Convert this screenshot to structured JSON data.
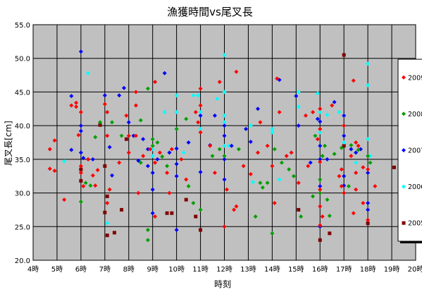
{
  "chart_data": {
    "type": "scatter",
    "title": "漁獲時間vs尾叉長",
    "xlabel": "時刻",
    "ylabel": "尾叉長[cm]",
    "xlim": [
      4,
      20
    ],
    "ylim": [
      20,
      55
    ],
    "x_ticks": [
      "4時",
      "5時",
      "6時",
      "7時",
      "8時",
      "9時",
      "10時",
      "11時",
      "12時",
      "13時",
      "14時",
      "15時",
      "16時",
      "17時",
      "18時",
      "19時",
      "20時"
    ],
    "y_ticks": [
      "20.0",
      "25.0",
      "30.0",
      "35.0",
      "40.0",
      "45.0",
      "50.0",
      "55.0"
    ],
    "grid": true,
    "legend_position": "right",
    "plot_background": "#c0c0c0",
    "series": [
      {
        "name": "2009",
        "color": "#ff0000",
        "marker": "diamond",
        "points": [
          [
            4.7,
            36.5
          ],
          [
            4.9,
            37.8
          ],
          [
            4.9,
            33.3
          ],
          [
            4.7,
            33.6
          ],
          [
            5.3,
            29.0
          ],
          [
            5.6,
            43.0
          ],
          [
            5.8,
            43.4
          ],
          [
            5.8,
            42.8
          ],
          [
            6.0,
            42.0
          ],
          [
            5.9,
            38.6
          ],
          [
            6.0,
            34.0
          ],
          [
            6.0,
            33.0
          ],
          [
            6.3,
            35.0
          ],
          [
            6.1,
            31.0
          ],
          [
            6.5,
            32.6
          ],
          [
            6.6,
            31.1
          ],
          [
            6.7,
            33.4
          ],
          [
            7.0,
            43.2
          ],
          [
            7.1,
            42.0
          ],
          [
            7.1,
            38.5
          ],
          [
            7.2,
            30.5
          ],
          [
            7.1,
            28.5
          ],
          [
            7.6,
            34.5
          ],
          [
            7.9,
            41.5
          ],
          [
            8.0,
            38.5
          ],
          [
            8.0,
            36.0
          ],
          [
            8.3,
            45.0
          ],
          [
            8.3,
            43.0
          ],
          [
            8.4,
            30.0
          ],
          [
            8.3,
            38.5
          ],
          [
            8.6,
            35.5
          ],
          [
            8.9,
            36.5
          ],
          [
            9.1,
            46.5
          ],
          [
            9.1,
            34.5
          ],
          [
            9.1,
            26.5
          ],
          [
            9.3,
            36.0
          ],
          [
            9.6,
            33.0
          ],
          [
            9.7,
            30.0
          ],
          [
            9.8,
            36.5
          ],
          [
            10.2,
            35.0
          ],
          [
            10.4,
            32.0
          ],
          [
            10.8,
            42.0
          ],
          [
            10.9,
            40.5
          ],
          [
            11.0,
            45.5
          ],
          [
            11.0,
            43.0
          ],
          [
            11.0,
            39.0
          ],
          [
            11.4,
            37.0
          ],
          [
            11.6,
            33.0
          ],
          [
            11.8,
            46.5
          ],
          [
            12.0,
            25.0
          ],
          [
            12.1,
            30.5
          ],
          [
            12.4,
            27.5
          ],
          [
            12.5,
            48.0
          ],
          [
            12.5,
            28.0
          ],
          [
            12.8,
            34.0
          ],
          [
            13.1,
            32.8
          ],
          [
            13.4,
            36.0
          ],
          [
            13.5,
            40.5
          ],
          [
            13.8,
            37.0
          ],
          [
            14.0,
            34.0
          ],
          [
            14.1,
            28.5
          ],
          [
            14.2,
            47.0
          ],
          [
            14.3,
            42.0
          ],
          [
            14.6,
            35.5
          ],
          [
            14.8,
            36.0
          ],
          [
            15.1,
            31.5
          ],
          [
            15.4,
            41.5
          ],
          [
            15.5,
            34.0
          ],
          [
            15.7,
            42.0
          ],
          [
            15.9,
            38.0
          ],
          [
            16.0,
            42.5
          ],
          [
            16.0,
            39.5
          ],
          [
            16.0,
            34.6
          ],
          [
            16.0,
            30.5
          ],
          [
            16.0,
            28.0
          ],
          [
            16.0,
            25.2
          ],
          [
            16.1,
            26.5
          ],
          [
            16.5,
            43.0
          ],
          [
            16.8,
            32.5
          ],
          [
            17.0,
            40.0
          ],
          [
            16.9,
            33.5
          ],
          [
            16.9,
            31.0
          ],
          [
            17.0,
            30.0
          ],
          [
            17.3,
            35.5
          ],
          [
            17.4,
            27.0
          ],
          [
            17.5,
            37.5
          ],
          [
            17.5,
            33.0
          ],
          [
            17.5,
            30.5
          ],
          [
            17.6,
            37.0
          ],
          [
            17.8,
            28.5
          ],
          [
            17.4,
            46.7
          ],
          [
            17.8,
            33.8
          ],
          [
            18.0,
            33.5
          ],
          [
            18.0,
            26.0
          ],
          [
            18.3,
            31.0
          ]
        ]
      },
      {
        "name": "2008",
        "color": "#00a000",
        "marker": "diamond",
        "points": [
          [
            6.0,
            28.7
          ],
          [
            6.2,
            31.5
          ],
          [
            6.4,
            31.1
          ],
          [
            6.6,
            38.3
          ],
          [
            6.8,
            40.5
          ],
          [
            7.3,
            40.5
          ],
          [
            7.7,
            38.5
          ],
          [
            8.5,
            40.8
          ],
          [
            8.5,
            34.5
          ],
          [
            8.8,
            45.5
          ],
          [
            8.8,
            24.5
          ],
          [
            8.8,
            23.0
          ],
          [
            9.0,
            38.0
          ],
          [
            9.0,
            37.0
          ],
          [
            9.2,
            37.5
          ],
          [
            9.4,
            35.4
          ],
          [
            9.6,
            34.0
          ],
          [
            10.0,
            39.5
          ],
          [
            10.4,
            41.0
          ],
          [
            10.5,
            31.0
          ],
          [
            10.7,
            28.5
          ],
          [
            11.0,
            27.5
          ],
          [
            11.5,
            35.5
          ],
          [
            11.8,
            36.5
          ],
          [
            12.0,
            35.5
          ],
          [
            12.6,
            36.5
          ],
          [
            13.3,
            26.5
          ],
          [
            13.5,
            31.5
          ],
          [
            13.6,
            30.8
          ],
          [
            13.8,
            31.5
          ],
          [
            14.0,
            24.0
          ],
          [
            14.1,
            36.5
          ],
          [
            14.4,
            34.5
          ],
          [
            14.7,
            33.5
          ],
          [
            14.9,
            32.5
          ],
          [
            15.2,
            26.5
          ],
          [
            15.7,
            29.5
          ],
          [
            15.8,
            38.5
          ],
          [
            16.0,
            32.0
          ],
          [
            16.0,
            30.0
          ],
          [
            16.1,
            35.5
          ],
          [
            16.2,
            37.0
          ],
          [
            16.3,
            29.0
          ],
          [
            16.4,
            26.6
          ],
          [
            16.6,
            35.8
          ],
          [
            16.9,
            36.7
          ],
          [
            17.2,
            31.0
          ],
          [
            17.3,
            37.1
          ],
          [
            17.6,
            36.4
          ],
          [
            18.0,
            35.5
          ],
          [
            18.1,
            34.5
          ]
        ]
      },
      {
        "name": "2007",
        "color": "#0000ff",
        "marker": "diamond",
        "points": [
          [
            5.6,
            44.4
          ],
          [
            5.6,
            36.4
          ],
          [
            6.0,
            51.0
          ],
          [
            6.0,
            40.0
          ],
          [
            6.0,
            39.2
          ],
          [
            6.0,
            36.0
          ],
          [
            6.1,
            35.2
          ],
          [
            6.3,
            35.0
          ],
          [
            6.5,
            35.0
          ],
          [
            7.0,
            44.5
          ],
          [
            7.2,
            36.8
          ],
          [
            7.3,
            32.6
          ],
          [
            7.6,
            44.5
          ],
          [
            7.8,
            45.6
          ],
          [
            8.0,
            40.5
          ],
          [
            8.2,
            38.5
          ],
          [
            8.4,
            34.8
          ],
          [
            8.6,
            38.0
          ],
          [
            8.8,
            36.5
          ],
          [
            8.8,
            34.0
          ],
          [
            9.0,
            33.0
          ],
          [
            9.0,
            30.5
          ],
          [
            9.0,
            27.0
          ],
          [
            9.2,
            35.0
          ],
          [
            9.5,
            47.8
          ],
          [
            9.7,
            36.0
          ],
          [
            10.0,
            34.3
          ],
          [
            10.0,
            36.6
          ],
          [
            10.0,
            32.5
          ],
          [
            10.0,
            24.5
          ],
          [
            10.5,
            37.5
          ],
          [
            11.0,
            41.5
          ],
          [
            11.0,
            33.1
          ],
          [
            11.4,
            37.1
          ],
          [
            11.6,
            41.5
          ],
          [
            12.0,
            40.0
          ],
          [
            12.0,
            38.5
          ],
          [
            12.0,
            35.0
          ],
          [
            12.0,
            32.0
          ],
          [
            12.3,
            37.0
          ],
          [
            12.9,
            39.5
          ],
          [
            13.1,
            37.6
          ],
          [
            13.4,
            42.5
          ],
          [
            14.3,
            46.8
          ],
          [
            15.0,
            44.4
          ],
          [
            15.1,
            40.0
          ],
          [
            15.6,
            34.5
          ],
          [
            15.9,
            41.0
          ],
          [
            16.0,
            40.6
          ],
          [
            16.0,
            37.0
          ],
          [
            16.0,
            35.0
          ],
          [
            16.0,
            31.0
          ],
          [
            16.0,
            25.0
          ],
          [
            16.3,
            35.0
          ],
          [
            16.6,
            43.5
          ],
          [
            17.0,
            41.5
          ],
          [
            17.0,
            38.5
          ],
          [
            17.0,
            32.5
          ],
          [
            17.0,
            31.1
          ],
          [
            17.3,
            36.5
          ],
          [
            17.5,
            36.0
          ],
          [
            17.7,
            36.5
          ],
          [
            18.0,
            28.5
          ],
          [
            18.0,
            27.5
          ],
          [
            18.0,
            33.0
          ]
        ]
      },
      {
        "name": "2006",
        "color": "#00ffff",
        "marker": "diamond",
        "points": [
          [
            5.3,
            34.7
          ],
          [
            6.3,
            47.8
          ],
          [
            7.1,
            42.0
          ],
          [
            7.1,
            25.5
          ],
          [
            9.0,
            36.5
          ],
          [
            9.0,
            35.5
          ],
          [
            9.5,
            42.0
          ],
          [
            10.0,
            44.5
          ],
          [
            10.0,
            42.0
          ],
          [
            10.3,
            36.0
          ],
          [
            10.7,
            44.5
          ],
          [
            10.9,
            44.5
          ],
          [
            11.0,
            42.0
          ],
          [
            11.0,
            39.5
          ],
          [
            11.7,
            44.0
          ],
          [
            12.0,
            50.5
          ],
          [
            12.0,
            45.0
          ],
          [
            12.0,
            41.5
          ],
          [
            12.0,
            40.5
          ],
          [
            12.0,
            37.0
          ],
          [
            12.2,
            37.0
          ],
          [
            13.1,
            40.0
          ],
          [
            13.2,
            31.6
          ],
          [
            14.0,
            39.5
          ],
          [
            14.0,
            39.0
          ],
          [
            14.3,
            32.0
          ],
          [
            15.1,
            45.0
          ],
          [
            15.1,
            42.8
          ],
          [
            15.9,
            44.8
          ],
          [
            16.0,
            42.0
          ],
          [
            16.0,
            39.0
          ],
          [
            16.3,
            41.6
          ],
          [
            16.8,
            42.0
          ],
          [
            17.0,
            41.5
          ],
          [
            17.0,
            37.5
          ],
          [
            17.5,
            34.5
          ],
          [
            18.0,
            49.2
          ],
          [
            18.0,
            46.0
          ],
          [
            18.0,
            38.0
          ],
          [
            18.1,
            35.5
          ]
        ]
      },
      {
        "name": "2005",
        "color": "#800000",
        "marker": "square",
        "points": [
          [
            6.0,
            33.5
          ],
          [
            6.0,
            31.8
          ],
          [
            6.8,
            40.1
          ],
          [
            7.0,
            34.0
          ],
          [
            7.1,
            29.5
          ],
          [
            7.0,
            27.1
          ],
          [
            7.1,
            23.7
          ],
          [
            7.4,
            24.1
          ],
          [
            7.7,
            27.5
          ],
          [
            7.9,
            38.0
          ],
          [
            9.6,
            27.0
          ],
          [
            9.8,
            27.0
          ],
          [
            10.4,
            29.0
          ],
          [
            10.8,
            26.5
          ],
          [
            11.0,
            24.5
          ],
          [
            15.1,
            27.5
          ],
          [
            16.0,
            23.0
          ],
          [
            16.4,
            24.0
          ],
          [
            17.0,
            50.5
          ],
          [
            17.0,
            37.0
          ],
          [
            18.0,
            25.5
          ],
          [
            19.1,
            33.8
          ]
        ]
      }
    ]
  }
}
